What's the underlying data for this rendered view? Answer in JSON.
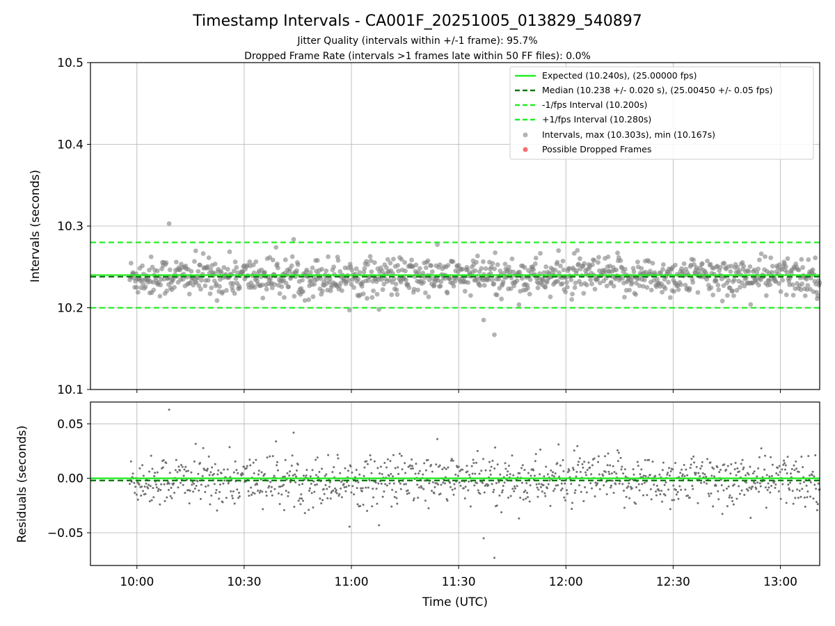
{
  "chart_data": [
    {
      "type": "scatter",
      "title": "Timestamp Intervals - CA001F_20251005_013829_540897",
      "subtitles": [
        "Jitter Quality (intervals within +/-1 frame): 95.7%",
        "Dropped Frame Rate (intervals >1 frames late within 50 FF files): 0.0%"
      ],
      "ylabel": "Intervals (seconds)",
      "xlabel": "Time (UTC)",
      "xlim": [
        "09:47",
        "13:11"
      ],
      "ylim": [
        10.1,
        10.5
      ],
      "x_ticks": [
        "10:00",
        "10:30",
        "11:00",
        "11:30",
        "12:00",
        "12:30",
        "13:00"
      ],
      "y_ticks": [
        "10.1",
        "10.2",
        "10.3",
        "10.4",
        "10.5"
      ],
      "y_tick_values": [
        10.1,
        10.2,
        10.3,
        10.4,
        10.5
      ],
      "grid": true,
      "legend_position": "top-right",
      "legend": [
        "Expected (10.240s), (25.00000 fps)",
        "Median (10.238 +/- 0.020 s), (25.00450 +/- 0.05 fps)",
        "-1/fps Interval (10.200s)",
        "+1/fps Interval (10.280s)",
        "Intervals, max (10.303s), min (10.167s)",
        "Possible Dropped Frames"
      ],
      "reference_lines": [
        {
          "name": "Expected (10.240s), (25.00000 fps)",
          "y": 10.24,
          "style": "solid",
          "color": "#22ee22"
        },
        {
          "name": "Median (10.238 +/- 0.020 s), (25.00450 +/- 0.05 fps)",
          "y": 10.238,
          "style": "dashed",
          "color": "#117711"
        },
        {
          "name": "-1/fps Interval (10.200s)",
          "y": 10.2,
          "style": "dashed",
          "color": "#22ee22"
        },
        {
          "name": "+1/fps Interval (10.280s)",
          "y": 10.28,
          "style": "dashed",
          "color": "#22ee22"
        }
      ],
      "series": [
        {
          "name": "Intervals, max (10.303s), min (10.167s)",
          "color": "#808080",
          "x_range": [
            "09:58",
            "13:11"
          ],
          "center": 10.238,
          "spread": 0.02,
          "count": 1100,
          "extremes": [
            {
              "x": "10:09",
              "y": 10.303
            },
            {
              "x": "11:40",
              "y": 10.167
            },
            {
              "x": "11:37",
              "y": 10.185
            }
          ]
        },
        {
          "name": "Possible Dropped Frames",
          "color": "#ee3333",
          "count": 0
        }
      ]
    },
    {
      "type": "scatter",
      "ylabel": "Residuals (seconds)",
      "xlabel": "Time (UTC)",
      "xlim": [
        "09:47",
        "13:11"
      ],
      "ylim": [
        -0.08,
        0.07
      ],
      "x_ticks": [
        "10:00",
        "10:30",
        "11:00",
        "11:30",
        "12:00",
        "12:30",
        "13:00"
      ],
      "y_ticks": [
        "0.05",
        "0.00",
        "−0.05"
      ],
      "y_tick_values": [
        0.05,
        0.0,
        -0.05
      ],
      "grid": true,
      "reference_lines": [
        {
          "y": 0.0,
          "style": "solid",
          "color": "#22ee22"
        },
        {
          "y": -0.002,
          "style": "dashed",
          "color": "#117711"
        }
      ],
      "series": [
        {
          "name": "Residuals",
          "color": "#707070",
          "x_range": [
            "09:58",
            "13:11"
          ],
          "center": -0.002,
          "spread": 0.02,
          "count": 1100,
          "extremes": [
            {
              "x": "10:09",
              "y": 0.063
            },
            {
              "x": "11:40",
              "y": -0.073
            },
            {
              "x": "11:37",
              "y": -0.055
            }
          ]
        }
      ]
    }
  ]
}
